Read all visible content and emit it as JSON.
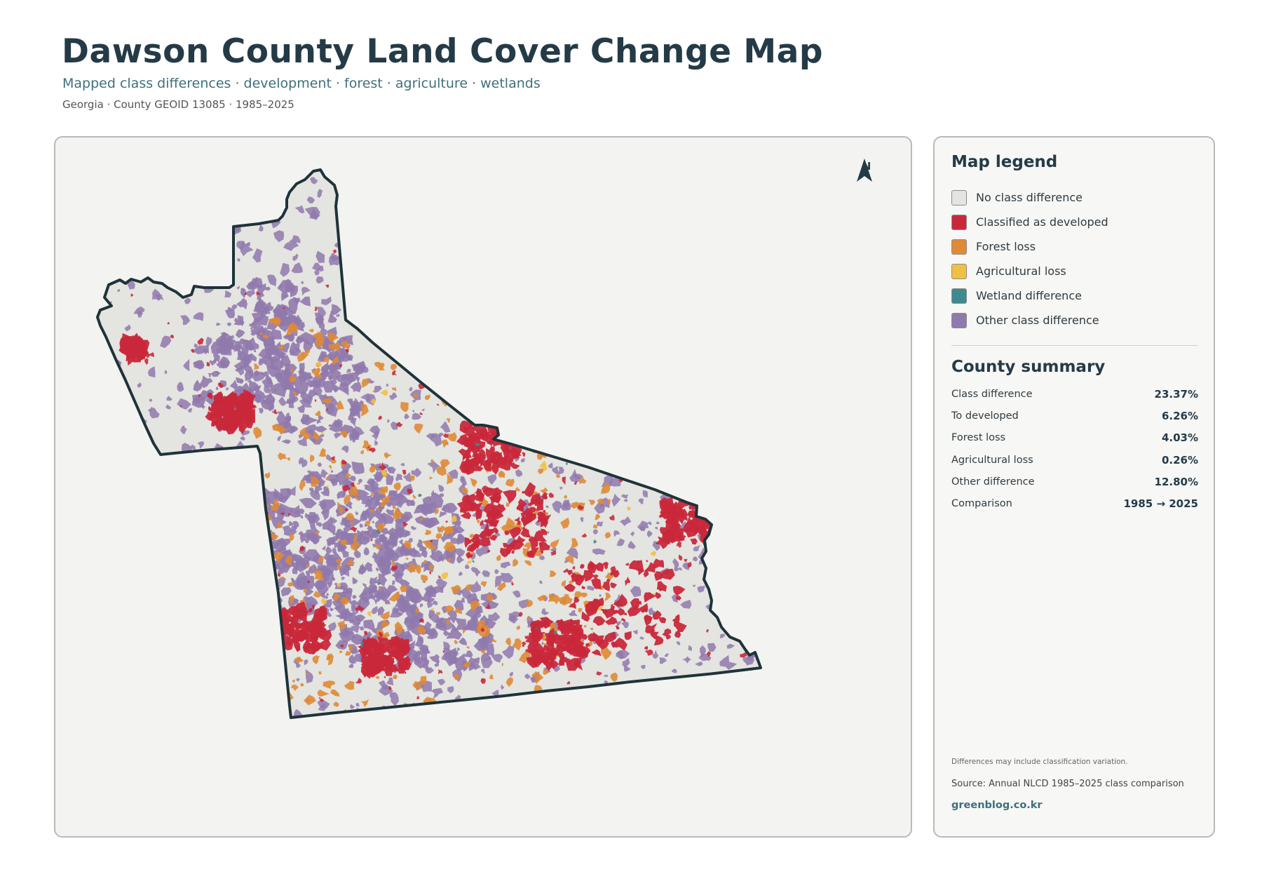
{
  "header": {
    "title": "Dawson County Land Cover Change Map",
    "subtitle": "Mapped class differences · development · forest · agriculture · wetlands",
    "meta": "Georgia · County GEOID 13085 · 1985–2025"
  },
  "map": {
    "north_label": "N",
    "colors": {
      "no_change": "#e4e4e0",
      "developed": "#c9283a",
      "forest_loss": "#de8a36",
      "agricultural_loss": "#f0c044",
      "wetland": "#3f8a8f",
      "other": "#9079ad",
      "outline": "#1f3339"
    }
  },
  "legend": {
    "title": "Map legend",
    "items": [
      {
        "label": "No class difference",
        "color": "#e4e4e0",
        "icon": "swatch-no-change"
      },
      {
        "label": "Classified as developed",
        "color": "#c9283a",
        "icon": "swatch-developed"
      },
      {
        "label": "Forest loss",
        "color": "#de8a36",
        "icon": "swatch-forest-loss"
      },
      {
        "label": "Agricultural loss",
        "color": "#f0c044",
        "icon": "swatch-agricultural-loss"
      },
      {
        "label": "Wetland difference",
        "color": "#3f8a8f",
        "icon": "swatch-wetland"
      },
      {
        "label": "Other class difference",
        "color": "#9079ad",
        "icon": "swatch-other"
      }
    ]
  },
  "summary": {
    "title": "County summary",
    "rows": [
      {
        "label": "Class difference",
        "value": "23.37%"
      },
      {
        "label": "To developed",
        "value": "6.26%"
      },
      {
        "label": "Forest loss",
        "value": "4.03%"
      },
      {
        "label": "Agricultural loss",
        "value": "0.26%"
      },
      {
        "label": "Other difference",
        "value": "12.80%"
      },
      {
        "label": "Comparison",
        "value": "1985 → 2025"
      }
    ]
  },
  "footer": {
    "note": "Differences may include classification variation.",
    "source": "Source: Annual NLCD 1985–2025 class comparison",
    "site": "greenblog.co.kr"
  }
}
